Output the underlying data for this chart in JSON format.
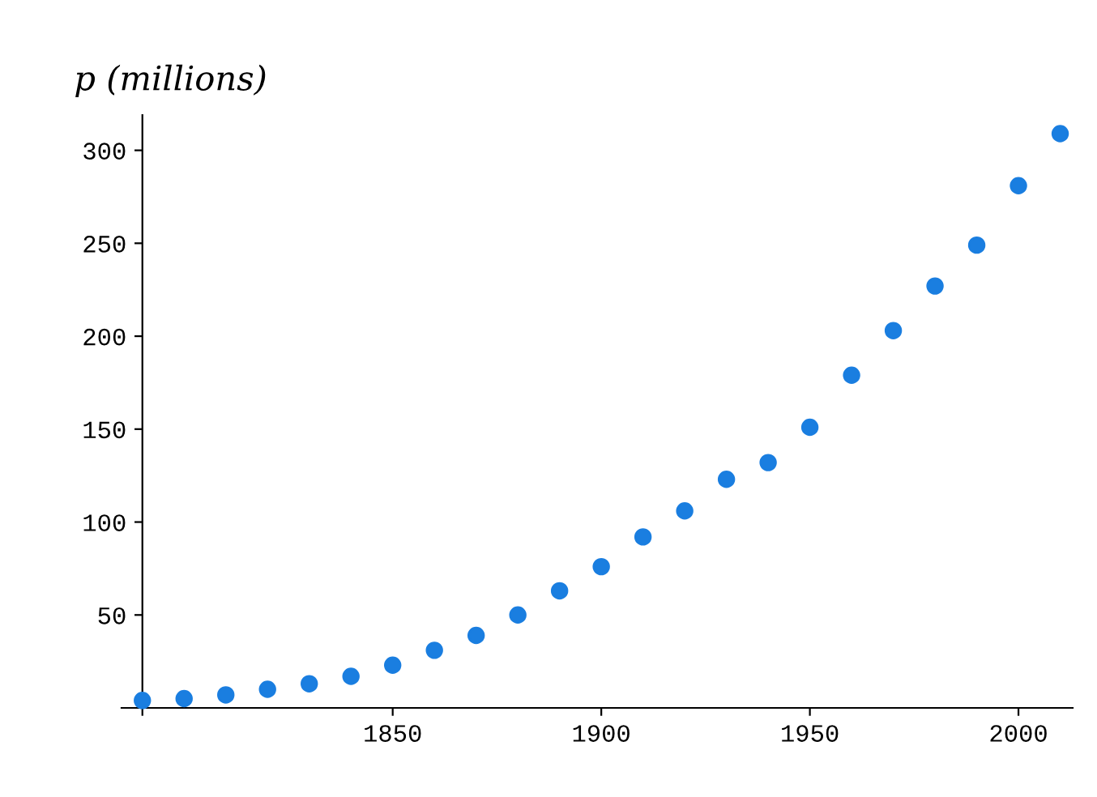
{
  "chart_data": {
    "type": "scatter",
    "ylabel": "p (millions)",
    "x": [
      1790,
      1800,
      1810,
      1820,
      1830,
      1840,
      1850,
      1860,
      1870,
      1880,
      1890,
      1900,
      1910,
      1920,
      1930,
      1940,
      1950,
      1960,
      1970,
      1980,
      1990,
      2000,
      2010
    ],
    "series": [
      {
        "color": "#1a7ee0",
        "values": [
          4,
          5,
          7,
          10,
          13,
          17,
          23,
          31,
          39,
          50,
          63,
          76,
          92,
          106,
          123,
          132,
          151,
          179,
          203,
          227,
          249,
          281,
          309
        ]
      }
    ],
    "xlim": [
      1785,
      2013
    ],
    "ylim": [
      0,
      319
    ],
    "xticks": [
      {
        "value": 1790,
        "label": null
      },
      1850,
      1900,
      1950,
      2000
    ],
    "yticks": [
      50,
      100,
      150,
      200,
      250,
      300
    ],
    "marker": "circle",
    "grid": false,
    "legend": false
  }
}
